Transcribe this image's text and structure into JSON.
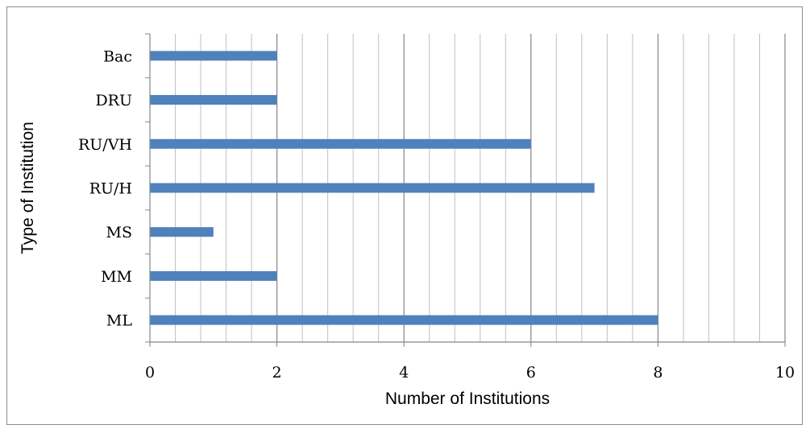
{
  "chart_data": {
    "type": "bar",
    "orientation": "horizontal",
    "categories": [
      "ML",
      "MM",
      "MS",
      "RU/H",
      "RU/VH",
      "DRU",
      "Bac"
    ],
    "values": [
      8,
      2,
      1,
      7,
      6,
      2,
      2
    ],
    "title": "",
    "xlabel": "Number of Institutions",
    "ylabel": "Type of Institution",
    "xlim": [
      0,
      10
    ],
    "xticks": [
      "0",
      "2",
      "4",
      "6",
      "8",
      "10"
    ],
    "major_gridlines": true,
    "minor_gridlines": true,
    "legend": "none",
    "bar_color": "#4f81bd",
    "major_grid_color": "#868686",
    "minor_grid_color": "#c0c0c0"
  }
}
